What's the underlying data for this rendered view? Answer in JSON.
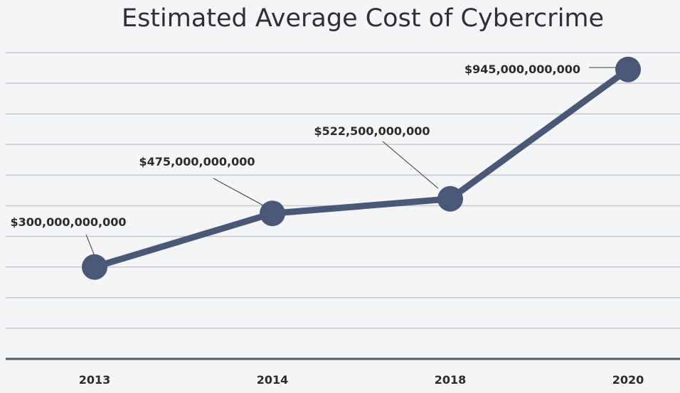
{
  "chart_data": {
    "type": "line",
    "title": "Estimated Average Cost of Cybercrime",
    "categories": [
      "2013",
      "2014",
      "2018",
      "2020"
    ],
    "series": [
      {
        "values": [
          300000000000,
          475000000000,
          522500000000,
          945000000000
        ],
        "color": "#4a5878"
      }
    ],
    "data_labels": [
      "$300,000,000,000",
      "$475,000,000,000",
      "$522,500,000,000",
      "$945,000,000,000"
    ],
    "ylim": [
      0,
      1000000000000
    ],
    "grid": true,
    "colors": {
      "background": "#f4f5f7",
      "gridline": "#c5c8cd",
      "axis": "#555a61",
      "line": "#4a5878"
    }
  }
}
